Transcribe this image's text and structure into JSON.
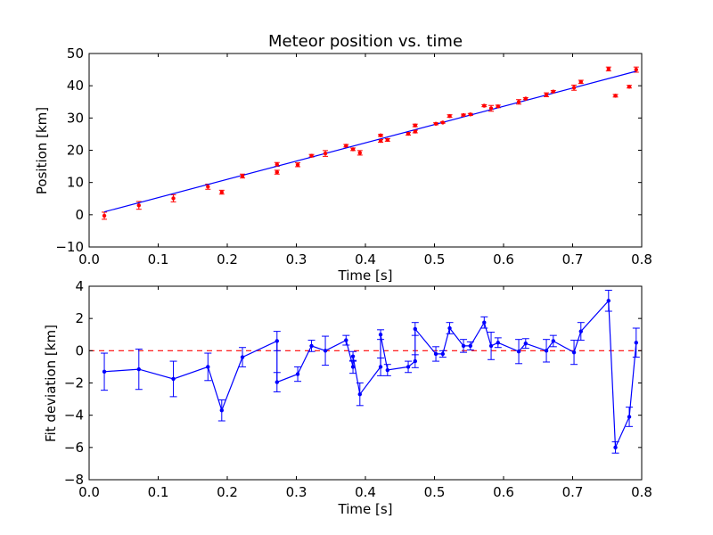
{
  "chart_data": [
    {
      "type": "scatter",
      "title": "Meteor position vs. time",
      "xlabel": "Time [s]",
      "ylabel": "Position [km]",
      "xlim": [
        0.0,
        0.8
      ],
      "ylim": [
        -10,
        50
      ],
      "xticks": [
        "0.0",
        "0.1",
        "0.2",
        "0.3",
        "0.4",
        "0.5",
        "0.6",
        "0.7",
        "0.8"
      ],
      "yticks": [
        "−10",
        "0",
        "10",
        "20",
        "30",
        "40",
        "50"
      ],
      "grid": false,
      "colors": {
        "points": "#ff0000",
        "fit": "#0000ff"
      },
      "series": [
        {
          "kind": "points-with-errorbars",
          "x": [
            0.022,
            0.072,
            0.122,
            0.172,
            0.192,
            0.222,
            0.272,
            0.272,
            0.302,
            0.322,
            0.342,
            0.372,
            0.382,
            0.392,
            0.422,
            0.422,
            0.432,
            0.462,
            0.472,
            0.472,
            0.502,
            0.512,
            0.522,
            0.542,
            0.552,
            0.572,
            0.582,
            0.592,
            0.622,
            0.632,
            0.662,
            0.672,
            0.702,
            0.712,
            0.752,
            0.762,
            0.782,
            0.792
          ],
          "y": [
            -0.3,
            2.9,
            5.1,
            8.7,
            7.0,
            12.0,
            15.6,
            13.2,
            15.5,
            18.3,
            19.0,
            21.4,
            20.3,
            19.2,
            22.9,
            24.6,
            23.2,
            25.1,
            25.8,
            27.7,
            28.2,
            28.6,
            30.6,
            30.9,
            31.1,
            33.8,
            33.0,
            33.6,
            35.0,
            36.0,
            37.2,
            38.2,
            39.4,
            41.2,
            45.2,
            36.9,
            39.7,
            45.0
          ],
          "err": [
            1.1,
            1.2,
            1.1,
            0.8,
            0.6,
            0.6,
            0.6,
            0.6,
            0.6,
            0.4,
            0.9,
            0.4,
            0.4,
            0.7,
            0.4,
            0.3,
            0.4,
            0.4,
            0.4,
            0.4,
            0.3,
            0.2,
            0.4,
            0.3,
            0.3,
            0.3,
            0.9,
            0.4,
            0.7,
            0.3,
            0.6,
            0.3,
            0.8,
            0.5,
            0.6,
            0.4,
            0.4,
            0.8
          ]
        },
        {
          "kind": "fit-line",
          "x": [
            0.022,
            0.792
          ],
          "y": [
            0.9,
            44.5
          ]
        }
      ]
    },
    {
      "type": "line",
      "xlabel": "Time [s]",
      "ylabel": "Fit deviation [km]",
      "xlim": [
        0.0,
        0.8
      ],
      "ylim": [
        -8,
        4
      ],
      "xticks": [
        "0.0",
        "0.1",
        "0.2",
        "0.3",
        "0.4",
        "0.5",
        "0.6",
        "0.7",
        "0.8"
      ],
      "yticks": [
        "−8",
        "−6",
        "−4",
        "−2",
        "0",
        "2",
        "4"
      ],
      "grid": false,
      "colors": {
        "series": "#0000ff",
        "zero_line": "#ff0000"
      },
      "zero_line": {
        "y": 0,
        "style": "dashed"
      },
      "series": [
        {
          "kind": "line-with-errorbars",
          "x": [
            0.022,
            0.072,
            0.122,
            0.172,
            0.192,
            0.222,
            0.272,
            0.272,
            0.302,
            0.322,
            0.342,
            0.372,
            0.382,
            0.382,
            0.392,
            0.422,
            0.422,
            0.432,
            0.462,
            0.472,
            0.472,
            0.502,
            0.512,
            0.522,
            0.542,
            0.552,
            0.572,
            0.582,
            0.592,
            0.622,
            0.632,
            0.662,
            0.672,
            0.702,
            0.712,
            0.752,
            0.762,
            0.782,
            0.792
          ],
          "y": [
            -1.3,
            -1.15,
            -1.75,
            -1.0,
            -3.7,
            -0.4,
            0.6,
            -1.95,
            -1.45,
            0.3,
            0.0,
            0.65,
            -1.0,
            -0.35,
            -2.7,
            -1.0,
            1.0,
            -1.2,
            -1.0,
            -0.65,
            1.35,
            -0.2,
            -0.2,
            1.4,
            0.3,
            0.3,
            1.75,
            0.3,
            0.5,
            -0.05,
            0.45,
            0.0,
            0.6,
            -0.1,
            1.2,
            3.1,
            -6.0,
            -4.1,
            0.5
          ],
          "err": [
            1.15,
            1.25,
            1.1,
            0.85,
            0.65,
            0.6,
            0.6,
            0.6,
            0.45,
            0.35,
            0.9,
            0.3,
            0.4,
            0.3,
            0.7,
            0.55,
            0.3,
            0.35,
            0.35,
            0.4,
            0.4,
            0.45,
            0.2,
            0.35,
            0.4,
            0.25,
            0.35,
            0.85,
            0.3,
            0.75,
            0.3,
            0.7,
            0.35,
            0.75,
            0.55,
            0.65,
            0.35,
            0.6,
            0.9
          ]
        }
      ]
    }
  ]
}
